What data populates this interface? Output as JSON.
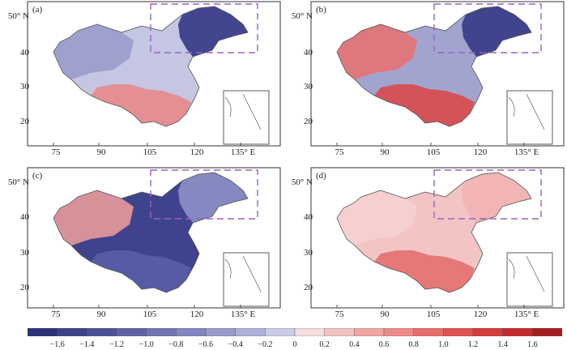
{
  "panels": [
    {
      "label": "(a)",
      "y_ticks": [
        "50° N",
        "40",
        "30",
        "20"
      ],
      "x_ticks": [
        "75",
        "90",
        "105",
        "120",
        "135° E"
      ],
      "north": "#3b3f8a",
      "west": "#9a9ccc",
      "south": "#e88a8a",
      "center": "#c4c6e2"
    },
    {
      "label": "(b)",
      "y_ticks": [
        "50° N",
        "40",
        "30",
        "20"
      ],
      "x_ticks": [
        "75",
        "90",
        "105",
        "120",
        "135° E"
      ],
      "north": "#3b3f8a",
      "west": "#e67373",
      "south": "#d94a4a",
      "center": "#a2a4d0"
    },
    {
      "label": "(c)",
      "y_ticks": [
        "50° N",
        "40",
        "30",
        "20"
      ],
      "x_ticks": [
        "75",
        "90",
        "105",
        "120",
        "135° E"
      ],
      "north": "#8a8cc4",
      "west": "#e89a9a",
      "south": "#5a5ea8",
      "center": "#3f438e"
    },
    {
      "label": "(d)",
      "y_ticks": [
        "50° N",
        "40",
        "30",
        "20"
      ],
      "x_ticks": [
        "75",
        "90",
        "105",
        "120",
        "135° E"
      ],
      "north": "#f1b3b3",
      "west": "#f6d2d2",
      "south": "#e57070",
      "center": "#f3c4c4"
    }
  ],
  "colorbar": {
    "ticks": [
      "−1.6",
      "−1.4",
      "−1.2",
      "−1.0",
      "−0.8",
      "−0.6",
      "−0.4",
      "−0.2",
      "0",
      "0.2",
      "0.4",
      "0.6",
      "0.8",
      "1.0",
      "1.2",
      "1.4",
      "1.6"
    ],
    "colors": [
      "#2c3079",
      "#3d4188",
      "#4d5197",
      "#5e62a5",
      "#7074b2",
      "#8386bf",
      "#989acb",
      "#afb0d8",
      "#cbcce6",
      "#f7dede",
      "#f4c2c2",
      "#f0a6a6",
      "#ec8a8a",
      "#e66e6e",
      "#df5353",
      "#d63b3b",
      "#c72a2a",
      "#a41d1d"
    ]
  }
}
